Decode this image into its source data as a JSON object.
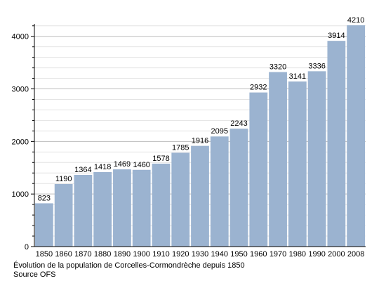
{
  "chart_data": {
    "type": "bar",
    "categories": [
      "1850",
      "1860",
      "1870",
      "1880",
      "1890",
      "1900",
      "1910",
      "1920",
      "1930",
      "1940",
      "1950",
      "1960",
      "1970",
      "1980",
      "1990",
      "2000",
      "2008"
    ],
    "values": [
      823,
      1190,
      1364,
      1418,
      1469,
      1460,
      1578,
      1785,
      1916,
      2095,
      2243,
      2932,
      3320,
      3141,
      3336,
      3914,
      4210
    ],
    "title": "",
    "xlabel": "",
    "ylabel": "",
    "ylim": [
      0,
      4200
    ],
    "yticks": [
      0,
      1000,
      2000,
      3000,
      4000
    ],
    "grid": true,
    "bar_color": "#9bb3d0",
    "caption": "Évolution de la population de Corcelles-Cormondrèche depuis 1850",
    "source": "Source OFS"
  }
}
